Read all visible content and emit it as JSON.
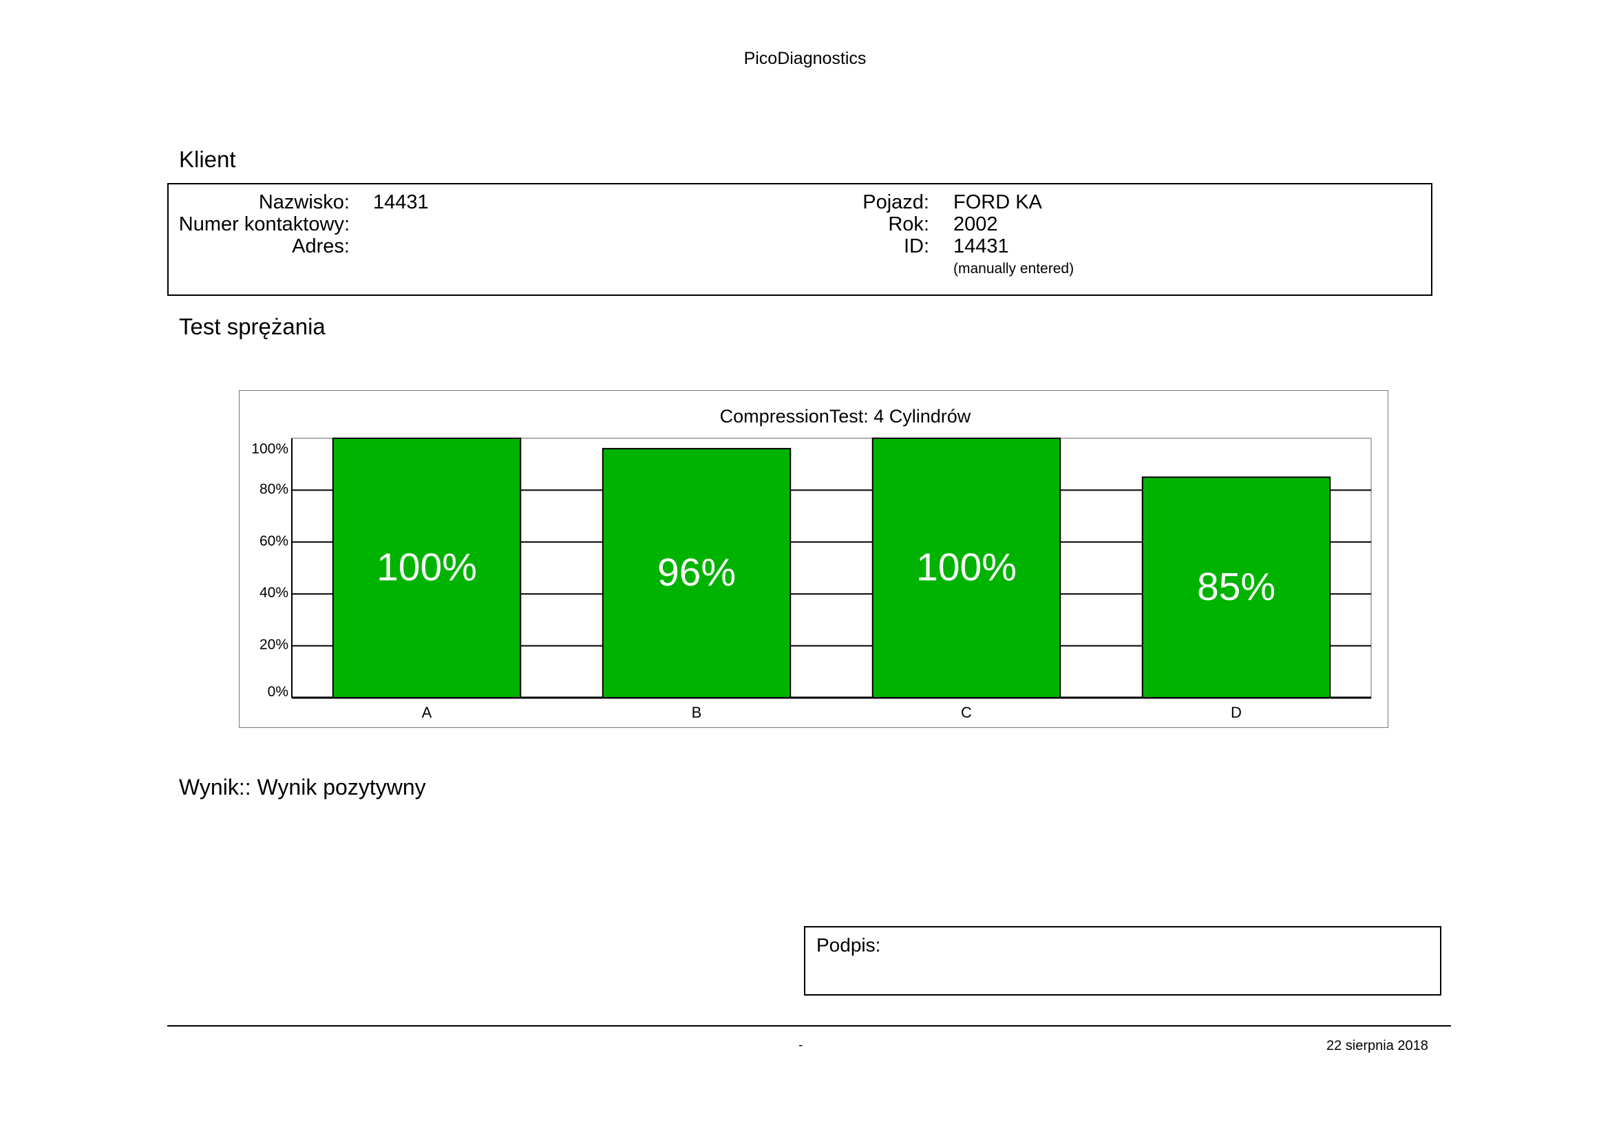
{
  "header": {
    "title": "PicoDiagnostics"
  },
  "client": {
    "section_title": "Klient",
    "left_fields": [
      {
        "label": "Nazwisko:",
        "value": "14431"
      },
      {
        "label": "Numer kontaktowy:",
        "value": ""
      },
      {
        "label": "Adres:",
        "value": ""
      }
    ],
    "right_fields": [
      {
        "label": "Pojazd:",
        "value": "FORD KA"
      },
      {
        "label": "Rok:",
        "value": "2002"
      },
      {
        "label": "ID:",
        "value": "14431"
      }
    ],
    "id_note": "(manually entered)"
  },
  "test": {
    "section_title": "Test sprężania"
  },
  "chart_data": {
    "type": "bar",
    "title": "CompressionTest: 4 Cylindrów",
    "categories": [
      "A",
      "B",
      "C",
      "D"
    ],
    "values": [
      100,
      96,
      100,
      85
    ],
    "value_labels": [
      "100%",
      "96%",
      "100%",
      "85%"
    ],
    "ylim": [
      0,
      100
    ],
    "yticks": [
      "0%",
      "20%",
      "40%",
      "60%",
      "80%",
      "100%"
    ],
    "grid": true,
    "bar_color": "#00b300"
  },
  "result": {
    "text": "Wynik:: Wynik pozytywny"
  },
  "signature": {
    "label": "Podpis:"
  },
  "footer": {
    "center": "-",
    "date": "22 sierpnia 2018"
  }
}
